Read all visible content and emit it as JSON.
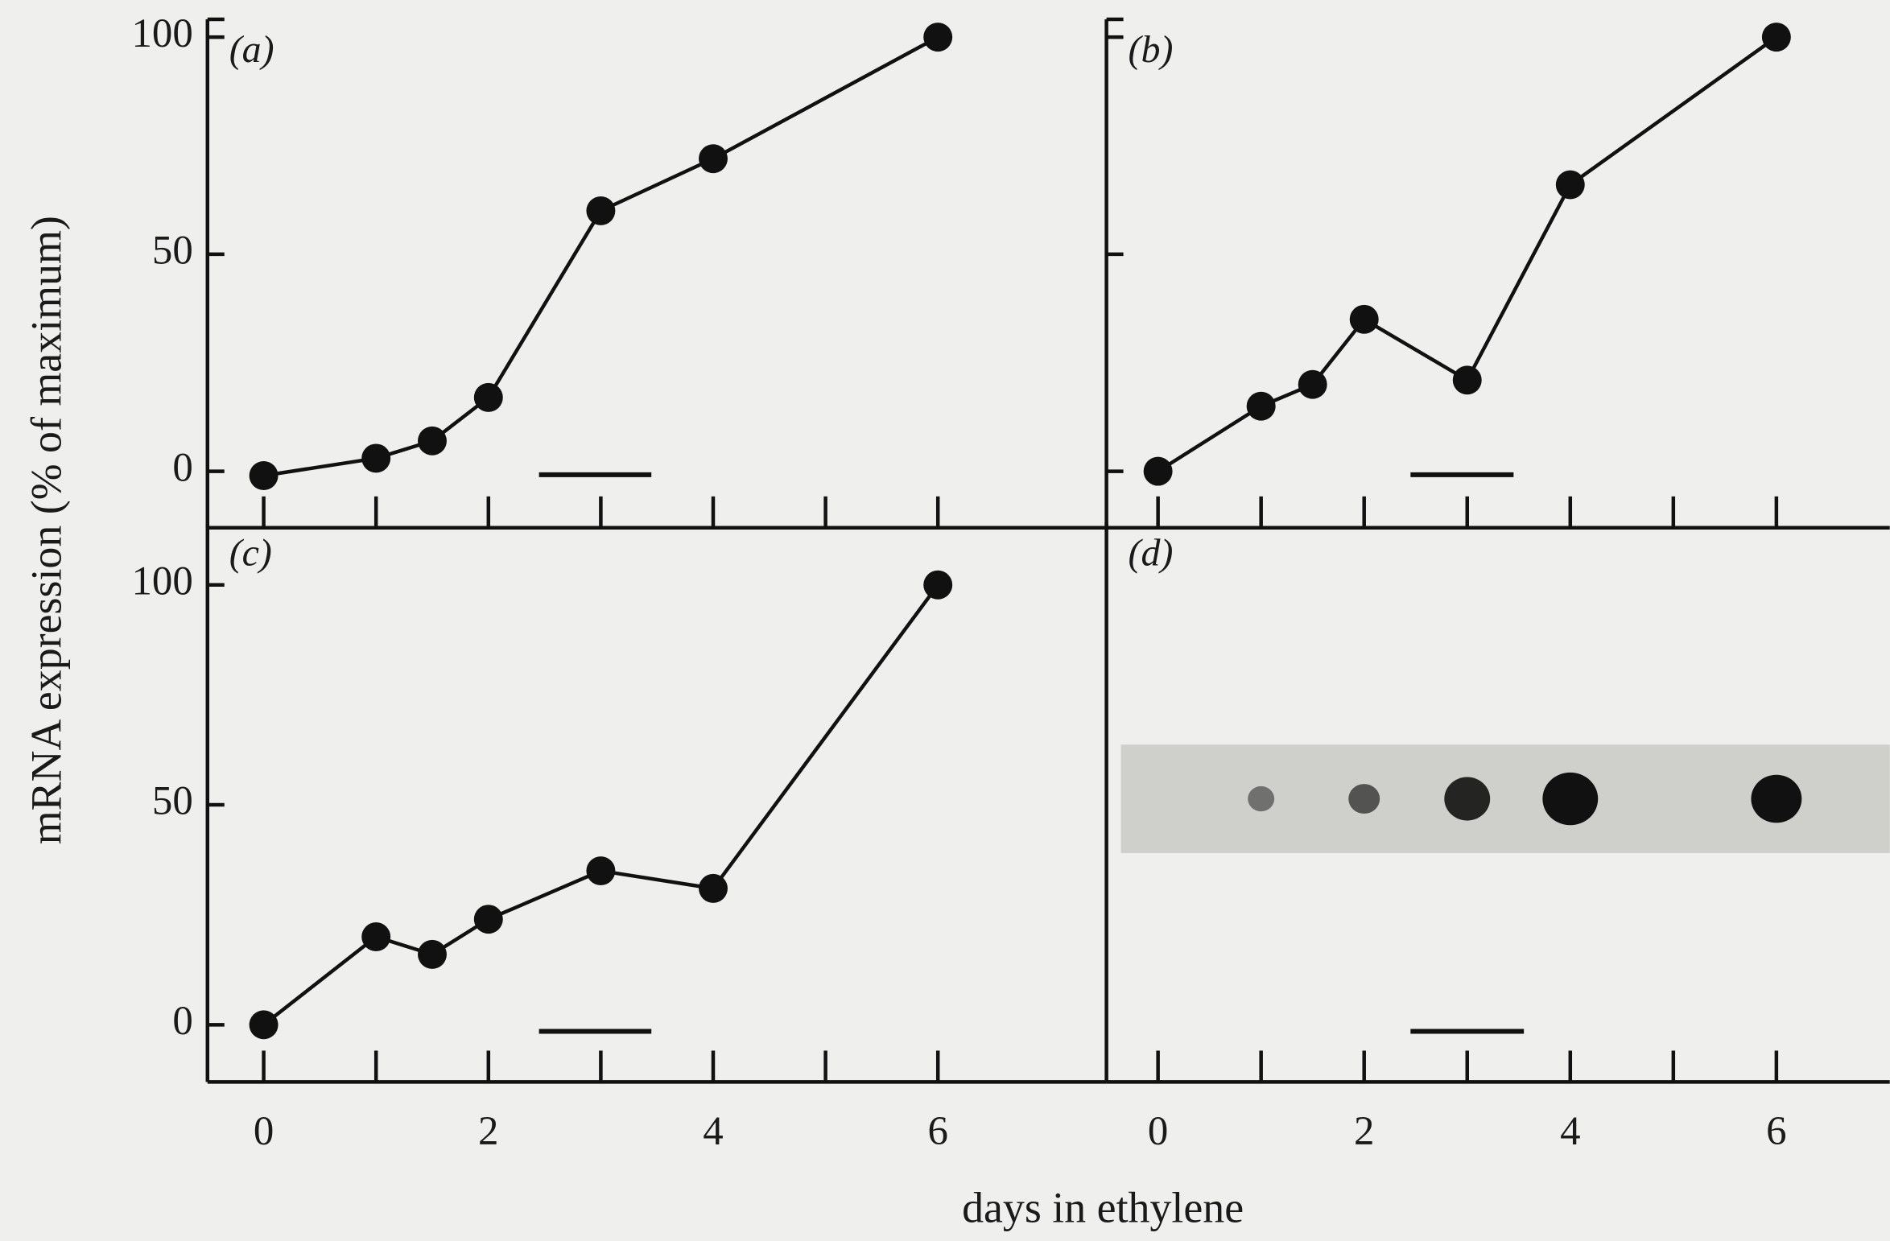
{
  "xlabel": "days in ethylene",
  "ylabel": "mRNA expression (% of maximum)",
  "chart_data": [
    {
      "type": "line",
      "label": "(a)",
      "color": "#111111",
      "x": [
        0,
        1,
        1.5,
        2,
        3,
        4,
        6
      ],
      "values": [
        -1,
        3,
        7,
        17,
        60,
        72,
        100
      ],
      "xlim": [
        -0.5,
        7.5
      ],
      "ylim": [
        -13,
        103
      ],
      "xticks": [
        0,
        1,
        2,
        3,
        4,
        5,
        6
      ],
      "yticks": [
        0,
        50,
        100
      ],
      "xtick_labels": false,
      "ytick_labels": true
    },
    {
      "type": "line",
      "label": "(b)",
      "color": "#111111",
      "x": [
        0,
        1,
        1.5,
        2,
        3,
        4,
        6
      ],
      "values": [
        0,
        15,
        20,
        35,
        21,
        66,
        100
      ],
      "xlim": [
        -0.5,
        7.1
      ],
      "ylim": [
        -13,
        103
      ],
      "xticks": [
        0,
        1,
        2,
        3,
        4,
        5,
        6
      ],
      "yticks": [
        0,
        50,
        100
      ],
      "xtick_labels": false,
      "ytick_labels": false
    },
    {
      "type": "line",
      "label": "(c)",
      "color": "#111111",
      "x": [
        0,
        1,
        1.5,
        2,
        3,
        4,
        6
      ],
      "values": [
        0,
        20,
        16,
        24,
        35,
        31,
        100
      ],
      "xlim": [
        -0.5,
        7.5
      ],
      "ylim": [
        -13,
        113
      ],
      "xticks": [
        0,
        {
          "value": 1,
          "label": null
        },
        2,
        {
          "value": 3,
          "label": null
        },
        4,
        {
          "value": 5,
          "label": null
        },
        6
      ],
      "yticks": [
        0,
        50,
        100
      ],
      "xtick_labels": true,
      "ytick_labels": true
    },
    {
      "type": "blot",
      "label": "(d)",
      "xlim": [
        -0.5,
        7.1
      ],
      "xticks": [
        0,
        {
          "value": 1,
          "label": null
        },
        2,
        {
          "value": 3,
          "label": null
        },
        4,
        {
          "value": 5,
          "label": null
        },
        6
      ],
      "xtick_labels": true
    }
  ]
}
